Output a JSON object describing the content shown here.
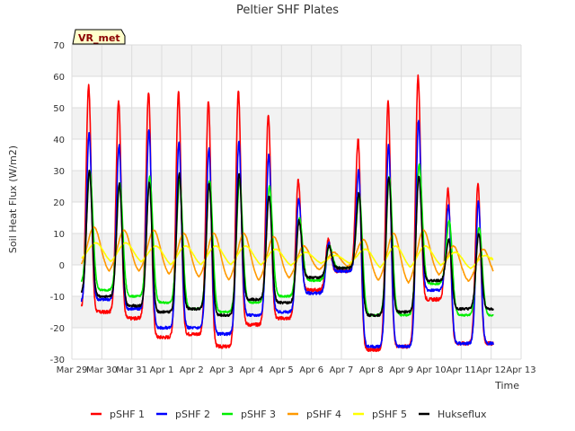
{
  "chart_data": {
    "type": "line",
    "title": "Peltier SHF Plates",
    "xlabel": "Time",
    "ylabel": "Soil Heat Flux (W/m2)",
    "ylim": [
      -30,
      70
    ],
    "xlim": [
      0,
      15
    ],
    "yticks": [
      -30,
      -20,
      -10,
      0,
      10,
      20,
      30,
      40,
      50,
      60,
      70
    ],
    "xticks": [
      {
        "pos": 0,
        "label": "Mar 29"
      },
      {
        "pos": 1,
        "label": "Mar 30"
      },
      {
        "pos": 2,
        "label": "Mar 31"
      },
      {
        "pos": 3,
        "label": "Apr 1"
      },
      {
        "pos": 4,
        "label": "Apr 2"
      },
      {
        "pos": 5,
        "label": "Apr 3"
      },
      {
        "pos": 6,
        "label": "Apr 4"
      },
      {
        "pos": 7,
        "label": "Apr 5"
      },
      {
        "pos": 8,
        "label": "Apr 6"
      },
      {
        "pos": 9,
        "label": "Apr 7"
      },
      {
        "pos": 10,
        "label": "Apr 8"
      },
      {
        "pos": 11,
        "label": "Apr 9"
      },
      {
        "pos": 12,
        "label": "Apr 10"
      },
      {
        "pos": 13,
        "label": "Apr 11"
      },
      {
        "pos": 14,
        "label": "Apr 12"
      },
      {
        "pos": 15,
        "label": "Apr 13"
      }
    ],
    "grid": true,
    "banded_background": true,
    "annotation": "VR_met",
    "legend_position": "bottom",
    "x_unit": "days since Mar 29 00:00",
    "daily_peaks": [
      {
        "name": "pSHF 1",
        "values": [
          57,
          52,
          55,
          55,
          52,
          55,
          48,
          27,
          8,
          40,
          52,
          60,
          24,
          26
        ]
      },
      {
        "name": "pSHF 2",
        "values": [
          42,
          38,
          43,
          39,
          37,
          39,
          35,
          21,
          7,
          30,
          38,
          46,
          19,
          20
        ]
      },
      {
        "name": "pSHF 3",
        "values": [
          30,
          26,
          28,
          27,
          27,
          27,
          25,
          15,
          6,
          22,
          28,
          32,
          14,
          12
        ]
      },
      {
        "name": "pSHF 4",
        "values": [
          12,
          11,
          11,
          10,
          10,
          10,
          9,
          6,
          4,
          8,
          10,
          11,
          6,
          5
        ]
      },
      {
        "name": "pSHF 5",
        "values": [
          7,
          7,
          6,
          6,
          6,
          6,
          5,
          4,
          3,
          5,
          6,
          6,
          4,
          3
        ]
      },
      {
        "name": "Hukseflux",
        "values": [
          30,
          26,
          26,
          29,
          26,
          29,
          22,
          14,
          6,
          23,
          28,
          28,
          8,
          10
        ]
      }
    ],
    "daily_minima": [
      {
        "name": "pSHF 1",
        "values": [
          -15,
          -15,
          -17,
          -23,
          -22,
          -26,
          -19,
          -17,
          -8,
          -2,
          -27,
          -26,
          -11,
          -25
        ]
      },
      {
        "name": "pSHF 2",
        "values": [
          -12,
          -11,
          -14,
          -20,
          -20,
          -22,
          -16,
          -15,
          -9,
          -2,
          -26,
          -26,
          -8,
          -25
        ]
      },
      {
        "name": "pSHF 3",
        "values": [
          -6,
          -8,
          -10,
          -12,
          -14,
          -15,
          -12,
          -10,
          -5,
          -1,
          -16,
          -16,
          -6,
          -16
        ]
      },
      {
        "name": "pSHF 4",
        "values": [
          -2,
          -3,
          -3,
          -4,
          -5,
          -6,
          -6,
          -5,
          -2,
          -1,
          -6,
          -7,
          -4,
          -6
        ]
      },
      {
        "name": "pSHF 5",
        "values": [
          1,
          0,
          0,
          -1,
          -1,
          -1,
          -1,
          -1,
          0,
          0,
          -2,
          -2,
          -1,
          -2
        ]
      },
      {
        "name": "Hukseflux",
        "values": [
          -9,
          -10,
          -13,
          -15,
          -14,
          -16,
          -11,
          -12,
          -4,
          -1,
          -16,
          -15,
          -5,
          -14
        ]
      }
    ],
    "series": [
      {
        "name": "pSHF 1",
        "color": "#ff0000"
      },
      {
        "name": "pSHF 2",
        "color": "#0000ff"
      },
      {
        "name": "pSHF 3",
        "color": "#00ee00"
      },
      {
        "name": "pSHF 4",
        "color": "#ff9900"
      },
      {
        "name": "pSHF 5",
        "color": "#ffff00"
      },
      {
        "name": "Hukseflux",
        "color": "#000000"
      }
    ]
  }
}
